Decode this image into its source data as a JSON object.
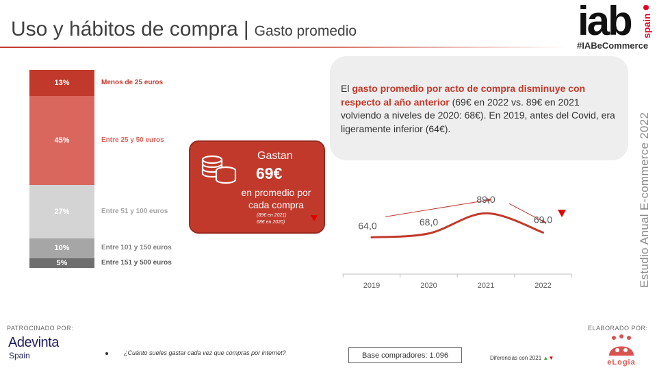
{
  "header": {
    "title": "Uso y hábitos de compra",
    "separator": "|",
    "subtitle": "Gasto promedio",
    "hashtag": "#IABeCommerce",
    "logo_text": "iab",
    "logo_sub": "spain"
  },
  "distribution": {
    "segments": [
      {
        "percent": "13%",
        "value": 13,
        "label": "Menos de 25 euros",
        "color": "#c1392b",
        "label_color": "#c1392b"
      },
      {
        "percent": "45%",
        "value": 45,
        "label": "Entre 25 y 50 euros",
        "color": "#d9675e",
        "label_color": "#d9675e"
      },
      {
        "percent": "27%",
        "value": 27,
        "label": "Entre 51 y 100 euros",
        "color": "#d4d4d4",
        "label_color": "#a6a6a6"
      },
      {
        "percent": "10%",
        "value": 10,
        "label": "Entre 101 y 150 euros",
        "color": "#a6a6a6",
        "label_color": "#7f7f7f"
      },
      {
        "percent": "5%",
        "value": 5,
        "label": "Entre 151 y 500 euros",
        "color": "#6e6e6e",
        "label_color": "#595959"
      }
    ]
  },
  "badge": {
    "line_top": "Gastan",
    "value": "69€",
    "line_1": "en promedio por",
    "line_2": "cada compra",
    "note_1": "(89€ en 2021)",
    "note_2": "68€ en 2020)",
    "color": "#c1392b"
  },
  "info": {
    "prefix": "El ",
    "highlight": "gasto promedio por acto de compra disminuye con respecto al año anterior",
    "rest": " (69€ en 2022 vs. 89€ en 2021 volviendo a niveles de 2020: 68€). En 2019, antes del Covid, era ligeramente inferior (64€)."
  },
  "chart_data": {
    "type": "line",
    "categories": [
      "2019",
      "2020",
      "2021",
      "2022"
    ],
    "values": [
      64.0,
      68.0,
      89.0,
      69.0
    ],
    "value_labels": [
      "64,0",
      "68,0",
      "89,0",
      "69,0"
    ],
    "line_color": "#c1392b"
  },
  "side_title": "Estudio Anual E-commerce  2022",
  "footer": {
    "sponsor_label": "PATROCINADO POR:",
    "sponsor_name": "Adevinta",
    "sponsor_sub": "Spain",
    "question": "¿Cuánto sueles gastar cada vez que compras por internet?",
    "base": "Base compradores: 1.096",
    "diff_label": "Diferencias con 2021",
    "up_glyph": "▲",
    "down_glyph": "▼",
    "made_by_label": "ELABORADO POR:",
    "made_by_name": "eLogia"
  }
}
